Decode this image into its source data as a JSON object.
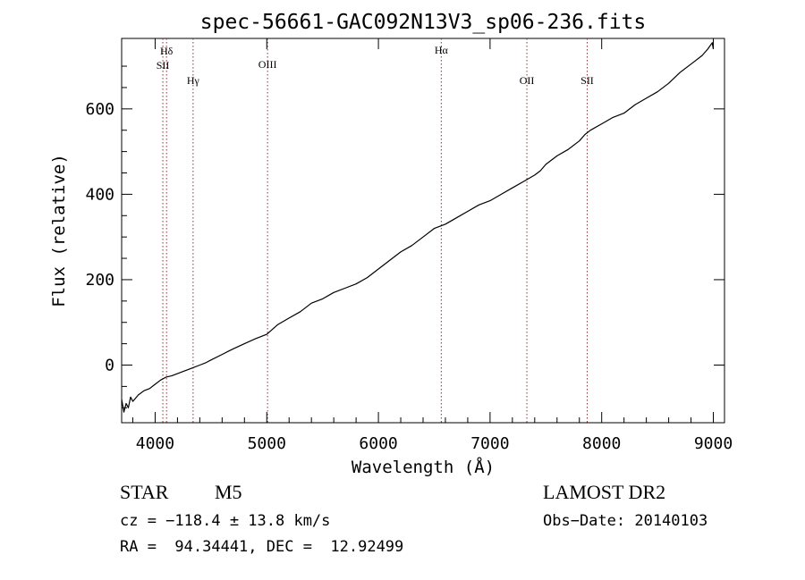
{
  "chart_data": {
    "type": "line",
    "title": "spec-56661-GAC092N13V3_sp06-236.fits",
    "xlabel": "Wavelength (Å)",
    "ylabel": "Flux (relative)",
    "xlim": [
      3700,
      9100
    ],
    "ylim": [
      -135,
      765
    ],
    "xticks": [
      4000,
      5000,
      6000,
      7000,
      8000,
      9000
    ],
    "yticks": [
      0,
      200,
      400,
      600
    ],
    "grid": false,
    "series": [
      {
        "x": [
          3700,
          3720,
          3740,
          3760,
          3780,
          3800,
          3850,
          3900,
          3950,
          4000,
          4050,
          4100,
          4150,
          4200,
          4250,
          4300,
          4350,
          4400,
          4450,
          4500,
          4600,
          4700,
          4800,
          4900,
          5000,
          5100,
          5200,
          5300,
          5400,
          5500,
          5600,
          5700,
          5800,
          5900,
          6000,
          6100,
          6200,
          6300,
          6400,
          6500,
          6600,
          6700,
          6800,
          6900,
          7000,
          7100,
          7200,
          7300,
          7400,
          7450,
          7500,
          7600,
          7700,
          7800,
          7850,
          7900,
          8000,
          8100,
          8200,
          8300,
          8400,
          8500,
          8600,
          8700,
          8800,
          8900,
          8950,
          8990,
          9000
        ],
        "y": [
          -80,
          -110,
          -90,
          -100,
          -75,
          -85,
          -70,
          -60,
          -55,
          -45,
          -35,
          -28,
          -25,
          -20,
          -15,
          -10,
          -5,
          0,
          5,
          12,
          25,
          38,
          50,
          62,
          72,
          95,
          110,
          125,
          145,
          155,
          170,
          180,
          190,
          205,
          225,
          245,
          265,
          280,
          300,
          320,
          330,
          345,
          360,
          375,
          385,
          400,
          415,
          430,
          445,
          455,
          470,
          490,
          505,
          525,
          540,
          550,
          565,
          580,
          590,
          610,
          625,
          640,
          660,
          685,
          705,
          725,
          740,
          755,
          740
        ]
      }
    ],
    "annotations": [
      {
        "label": "Hδ",
        "x": 4102
      },
      {
        "label": "SII",
        "x": 4069
      },
      {
        "label": "Hγ",
        "x": 4340
      },
      {
        "label": "OIII",
        "x": 5007
      },
      {
        "label": "Hα",
        "x": 6563
      },
      {
        "label": "OII",
        "x": 7330
      },
      {
        "label": "SII",
        "x": 7870
      }
    ]
  },
  "info": {
    "object_type": "STAR",
    "subclass": "M5",
    "survey": "LAMOST DR2",
    "cz": "cz = −118.4 ± 13.8 km/s",
    "obs_date": "Obs−Date: 20140103",
    "coords": "RA =  94.34441, DEC =  12.92499"
  },
  "colors": {
    "line": "#000000",
    "marker": "#b22222"
  }
}
